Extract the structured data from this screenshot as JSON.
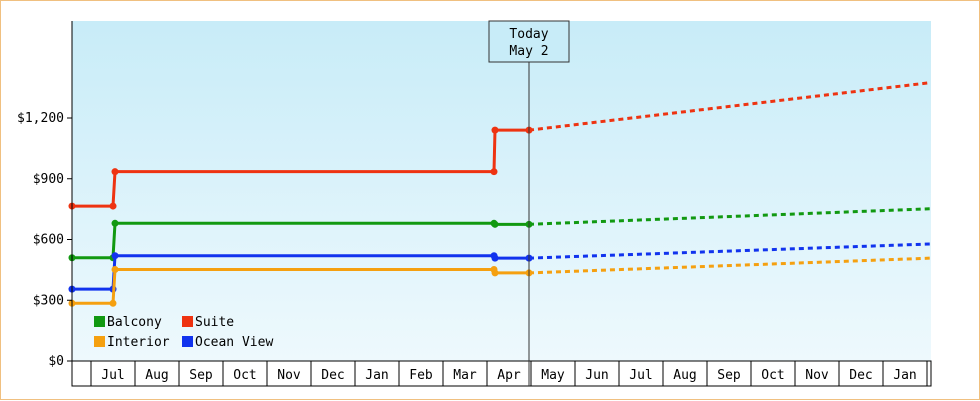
{
  "chart_data": {
    "type": "line",
    "title": "",
    "xlabel": "",
    "ylabel": "",
    "y_ticks": [
      {
        "value": 0,
        "label": "$0"
      },
      {
        "value": 300,
        "label": "$300"
      },
      {
        "value": 600,
        "label": "$600"
      },
      {
        "value": 900,
        "label": "$900"
      },
      {
        "value": 1200,
        "label": "$1,200"
      }
    ],
    "ylim": [
      0,
      1200
    ],
    "x_months": [
      "Jul",
      "Aug",
      "Sep",
      "Oct",
      "Nov",
      "Dec",
      "Jan",
      "Feb",
      "Mar",
      "Apr",
      "May",
      "Jun",
      "Jul",
      "Aug",
      "Sep",
      "Oct",
      "Nov",
      "Dec",
      "Jan"
    ],
    "today": {
      "line1": "Today",
      "line2": "May 2"
    },
    "legend": [
      {
        "name": "Balcony",
        "color": "#119911"
      },
      {
        "name": "Suite",
        "color": "#ee3311"
      },
      {
        "name": "Interior",
        "color": "#f5a010"
      },
      {
        "name": "Ocean View",
        "color": "#1133ee"
      }
    ],
    "series": [
      {
        "name": "Suite",
        "color": "#ee3311",
        "history": [
          [
            0,
            765
          ],
          [
            0.95,
            765
          ],
          [
            1.0,
            935
          ],
          [
            9.85,
            935
          ],
          [
            9.9,
            1140
          ],
          [
            10.35,
            1140
          ]
        ],
        "forecast": [
          [
            10.35,
            1140
          ],
          [
            19.0,
            1375
          ]
        ]
      },
      {
        "name": "Balcony",
        "color": "#119911",
        "history": [
          [
            0,
            510
          ],
          [
            0.95,
            510
          ],
          [
            1.0,
            680
          ],
          [
            9.85,
            680
          ],
          [
            9.9,
            675
          ],
          [
            10.35,
            675
          ]
        ],
        "forecast": [
          [
            10.35,
            675
          ],
          [
            19.0,
            752
          ]
        ]
      },
      {
        "name": "Ocean View",
        "color": "#1133ee",
        "history": [
          [
            0,
            355
          ],
          [
            0.95,
            355
          ],
          [
            1.0,
            520
          ],
          [
            9.85,
            520
          ],
          [
            9.9,
            508
          ],
          [
            10.35,
            508
          ]
        ],
        "forecast": [
          [
            10.35,
            508
          ],
          [
            19.0,
            578
          ]
        ]
      },
      {
        "name": "Interior",
        "color": "#f5a010",
        "history": [
          [
            0,
            285
          ],
          [
            0.95,
            285
          ],
          [
            1.0,
            452
          ],
          [
            9.85,
            452
          ],
          [
            9.9,
            435
          ],
          [
            10.35,
            435
          ]
        ],
        "forecast": [
          [
            10.35,
            435
          ],
          [
            19.0,
            508
          ]
        ]
      }
    ]
  }
}
